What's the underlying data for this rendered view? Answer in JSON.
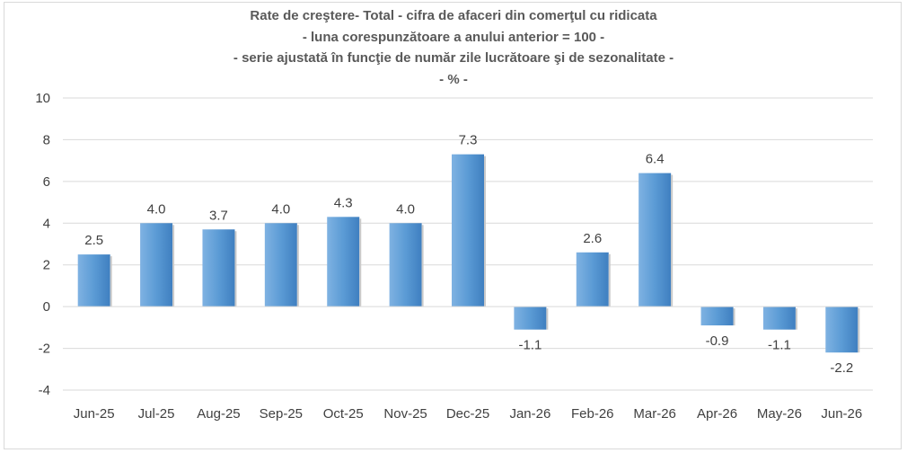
{
  "chart_data": {
    "type": "bar",
    "title_lines": [
      "Rate de creştere- Total - cifra de afaceri din comerţul cu ridicata",
      "- luna corespunzătoare a anului anterior = 100 -",
      "- serie ajustată în funcţie de număr zile lucrătoare şi de sezonalitate -",
      "- % -"
    ],
    "categories": [
      "Jun-25",
      "Jul-25",
      "Aug-25",
      "Sep-25",
      "Oct-25",
      "Nov-25",
      "Dec-25",
      "Jan-26",
      "Feb-26",
      "Mar-26",
      "Apr-26",
      "May-26",
      "Jun-26"
    ],
    "values": [
      2.5,
      4.0,
      3.7,
      4.0,
      4.3,
      4.0,
      7.3,
      -1.1,
      2.6,
      6.4,
      -0.9,
      -1.1,
      -2.2
    ],
    "value_labels": [
      "2.5",
      "4.0",
      "3.7",
      "4.0",
      "4.3",
      "4.0",
      "7.3",
      "-1.1",
      "2.6",
      "6.4",
      "-0.9",
      "-1.1",
      "-2.2"
    ],
    "ylim": [
      -4,
      10
    ],
    "yticks": [
      -4,
      -2,
      0,
      2,
      4,
      6,
      8,
      10
    ],
    "ytick_labels": [
      "-4",
      "-2",
      "0",
      "2",
      "4",
      "6",
      "8",
      "10"
    ],
    "grid": true,
    "legend": "none",
    "xlabel": "",
    "ylabel": "",
    "bar_color": "#5b9bd5"
  }
}
